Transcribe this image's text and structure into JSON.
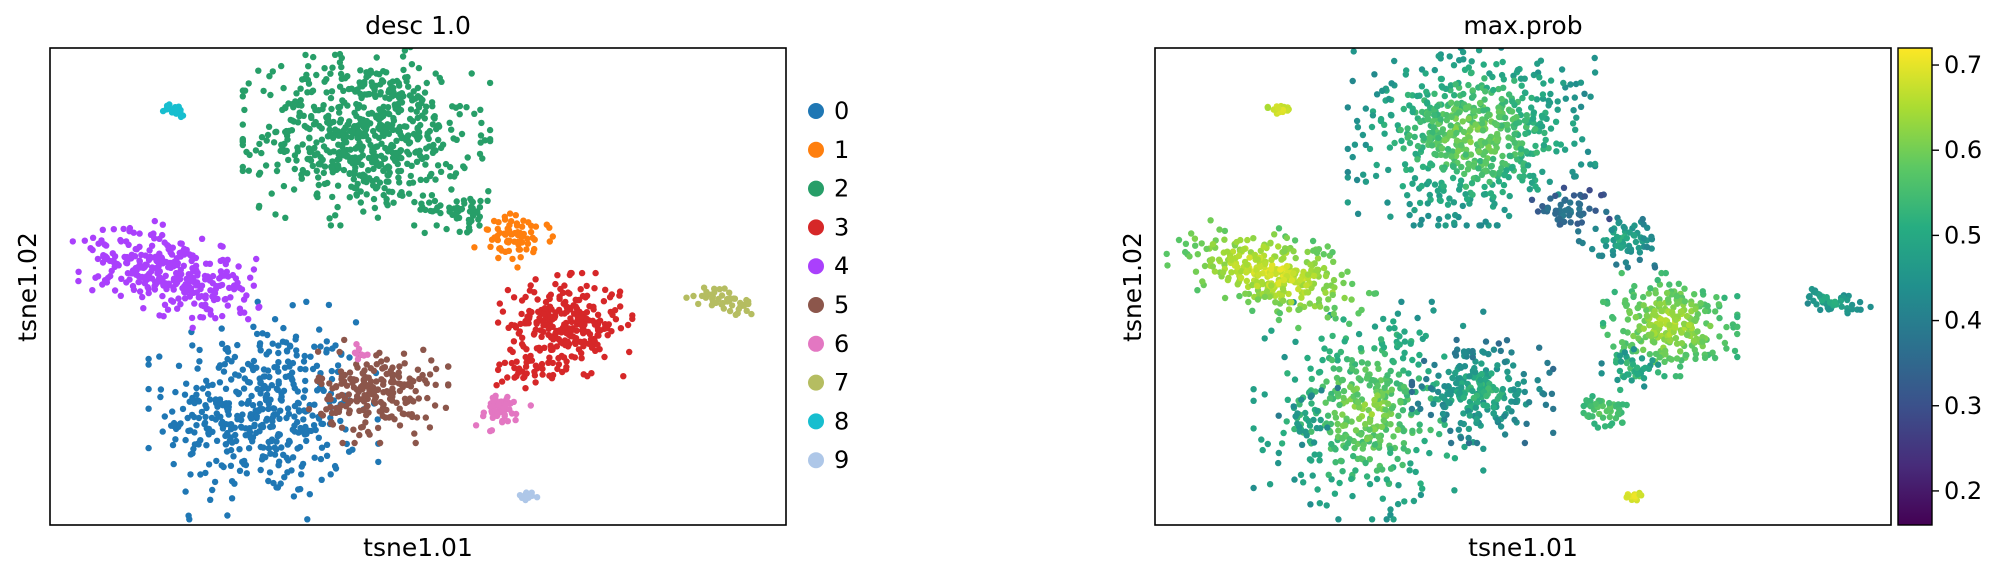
{
  "chart_data": [
    {
      "type": "scatter",
      "title": "desc 1.0",
      "xlabel": "tsne1.01",
      "ylabel": "tsne1.02",
      "xlim": [
        0,
        100
      ],
      "ylim": [
        0,
        100
      ],
      "legend_position": "right",
      "series": [
        {
          "name": "0",
          "color": "#1f77b4",
          "clusters": [
            {
              "x": 29.0,
              "y": 24.0,
              "sx": 6.5,
              "sy": 9.5,
              "n": 420
            },
            {
              "x": 21.0,
              "y": 22.0,
              "sx": 2.0,
              "sy": 3.0,
              "n": 25
            }
          ]
        },
        {
          "name": "1",
          "color": "#ff7f0e",
          "clusters": [
            {
              "x": 63.5,
              "y": 60.0,
              "sx": 2.5,
              "sy": 2.5,
              "n": 70
            }
          ]
        },
        {
          "name": "2",
          "color": "#279e68",
          "clusters": [
            {
              "x": 43.0,
              "y": 82.0,
              "sx": 7.0,
              "sy": 8.0,
              "n": 650
            },
            {
              "x": 56.0,
              "y": 66.0,
              "sx": 2.5,
              "sy": 2.0,
              "n": 50
            }
          ]
        },
        {
          "name": "3",
          "color": "#d62728",
          "clusters": [
            {
              "x": 70.0,
              "y": 42.0,
              "sx": 3.8,
              "sy": 4.5,
              "n": 280
            },
            {
              "x": 65.0,
              "y": 33.0,
              "sx": 1.8,
              "sy": 2.0,
              "n": 30
            }
          ]
        },
        {
          "name": "4",
          "color": "#aa40fc",
          "clusters": [
            {
              "x": 16.0,
              "y": 53.0,
              "sx": 6.0,
              "sy": 3.5,
              "n": 320,
              "rot": -30
            }
          ]
        },
        {
          "name": "5",
          "color": "#8c564b",
          "clusters": [
            {
              "x": 44.5,
              "y": 28.0,
              "sx": 4.0,
              "sy": 4.5,
              "n": 220
            }
          ]
        },
        {
          "name": "6",
          "color": "#e377c2",
          "clusters": [
            {
              "x": 61.0,
              "y": 24.0,
              "sx": 1.8,
              "sy": 1.8,
              "n": 50
            },
            {
              "x": 42.0,
              "y": 36.0,
              "sx": 0.8,
              "sy": 0.8,
              "n": 8
            }
          ]
        },
        {
          "name": "7",
          "color": "#b5bd61",
          "clusters": [
            {
              "x": 92.0,
              "y": 47.0,
              "sx": 2.2,
              "sy": 1.0,
              "n": 45,
              "rot": -25
            }
          ]
        },
        {
          "name": "8",
          "color": "#17becf",
          "clusters": [
            {
              "x": 17.0,
              "y": 87.0,
              "sx": 0.7,
              "sy": 0.6,
              "n": 22
            }
          ]
        },
        {
          "name": "9",
          "color": "#aec7e8",
          "clusters": [
            {
              "x": 65.0,
              "y": 6.0,
              "sx": 0.7,
              "sy": 0.5,
              "n": 14
            }
          ]
        }
      ]
    },
    {
      "type": "scatter",
      "title": "max.prob",
      "xlabel": "tsne1.01",
      "ylabel": "tsne1.02",
      "xlim": [
        0,
        100
      ],
      "ylim": [
        0,
        100
      ],
      "colorbar": {
        "colormap": "viridis",
        "range": [
          0.16,
          0.72
        ],
        "ticks": [
          "0.2",
          "0.3",
          "0.4",
          "0.5",
          "0.6",
          "0.7"
        ],
        "tick_values": [
          0.2,
          0.3,
          0.4,
          0.5,
          0.6,
          0.7
        ]
      },
      "clusters": [
        {
          "x": 29.0,
          "y": 24.0,
          "sx": 6.5,
          "sy": 9.5,
          "n": 420,
          "value": 0.54,
          "spread": 0.08
        },
        {
          "x": 21.0,
          "y": 22.0,
          "sx": 2.0,
          "sy": 3.0,
          "n": 25,
          "value": 0.45,
          "spread": 0.05
        },
        {
          "x": 63.5,
          "y": 60.0,
          "sx": 2.5,
          "sy": 2.5,
          "n": 70,
          "value": 0.45,
          "spread": 0.06
        },
        {
          "x": 43.0,
          "y": 82.0,
          "sx": 7.0,
          "sy": 8.0,
          "n": 650,
          "value": 0.53,
          "spread": 0.08
        },
        {
          "x": 56.0,
          "y": 66.0,
          "sx": 2.5,
          "sy": 2.0,
          "n": 50,
          "value": 0.35,
          "spread": 0.05
        },
        {
          "x": 70.0,
          "y": 42.0,
          "sx": 3.8,
          "sy": 4.5,
          "n": 280,
          "value": 0.6,
          "spread": 0.06
        },
        {
          "x": 65.0,
          "y": 33.0,
          "sx": 1.8,
          "sy": 2.0,
          "n": 30,
          "value": 0.48,
          "spread": 0.05
        },
        {
          "x": 16.0,
          "y": 53.0,
          "sx": 6.0,
          "sy": 3.5,
          "n": 320,
          "value": 0.64,
          "spread": 0.06,
          "rot": -30
        },
        {
          "x": 44.5,
          "y": 28.0,
          "sx": 4.0,
          "sy": 4.5,
          "n": 220,
          "value": 0.46,
          "spread": 0.08
        },
        {
          "x": 61.0,
          "y": 24.0,
          "sx": 1.8,
          "sy": 1.8,
          "n": 50,
          "value": 0.55,
          "spread": 0.04
        },
        {
          "x": 42.0,
          "y": 36.0,
          "sx": 0.8,
          "sy": 0.8,
          "n": 8,
          "value": 0.4,
          "spread": 0.04
        },
        {
          "x": 92.0,
          "y": 47.0,
          "sx": 2.2,
          "sy": 1.0,
          "n": 45,
          "value": 0.47,
          "spread": 0.05,
          "rot": -25
        },
        {
          "x": 17.0,
          "y": 87.0,
          "sx": 0.7,
          "sy": 0.6,
          "n": 22,
          "value": 0.68,
          "spread": 0.03
        },
        {
          "x": 65.0,
          "y": 6.0,
          "sx": 0.7,
          "sy": 0.5,
          "n": 14,
          "value": 0.69,
          "spread": 0.02
        }
      ]
    }
  ]
}
